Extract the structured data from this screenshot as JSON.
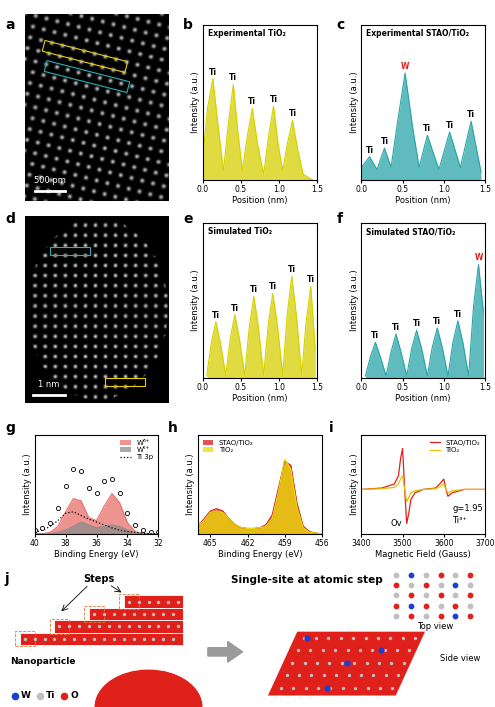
{
  "panel_a": {
    "letter": "a",
    "type": "image",
    "scale_bar": "500 pm"
  },
  "panel_d": {
    "letter": "d",
    "type": "image",
    "scale_bar": "1 nm"
  },
  "chart_data": [
    {
      "letter": "b",
      "type": "area",
      "title": "Experimental TiO₂",
      "x_label": "Position (nm)",
      "y_label": "Intensity (a.u.)",
      "x": [
        0.0,
        0.06,
        0.13,
        0.2,
        0.27,
        0.33,
        0.4,
        0.46,
        0.52,
        0.58,
        0.65,
        0.72,
        0.8,
        0.86,
        0.93,
        0.99,
        1.05,
        1.11,
        1.18,
        1.25,
        1.32,
        1.4,
        1.45
      ],
      "series": [
        {
          "color": "#d6d000",
          "values": [
            0.2,
            0.6,
            0.85,
            0.45,
            0.08,
            0.45,
            0.8,
            0.4,
            0.08,
            0.35,
            0.6,
            0.3,
            0.05,
            0.35,
            0.62,
            0.3,
            0.08,
            0.3,
            0.5,
            0.25,
            0.05,
            0.02,
            0.0
          ]
        }
      ],
      "peak_labels": [
        {
          "x": 0.13,
          "label": "Ti"
        },
        {
          "x": 0.4,
          "label": "Ti"
        },
        {
          "x": 0.65,
          "label": "Ti"
        },
        {
          "x": 0.93,
          "label": "Ti"
        },
        {
          "x": 1.18,
          "label": "Ti"
        }
      ],
      "xlim": [
        0.0,
        1.5
      ],
      "ylim": [
        0,
        1.3
      ],
      "xticks": [
        0.0,
        0.5,
        1.0,
        1.5
      ],
      "tick_labels": "x"
    },
    {
      "letter": "c",
      "type": "area",
      "title": "Experimental STAO/TiO₂",
      "x_label": "Position (nm)",
      "y_label": "Intensity (a.u.)",
      "x": [
        0.0,
        0.1,
        0.19,
        0.28,
        0.36,
        0.44,
        0.53,
        0.62,
        0.7,
        0.8,
        0.94,
        1.07,
        1.2,
        1.33,
        1.45
      ],
      "series": [
        {
          "color": "#2aa5a8",
          "values": [
            0.12,
            0.22,
            0.1,
            0.3,
            0.12,
            0.55,
            1.0,
            0.5,
            0.12,
            0.42,
            0.1,
            0.45,
            0.12,
            0.55,
            0.08
          ]
        }
      ],
      "peak_labels": [
        {
          "x": 0.1,
          "label": "Ti"
        },
        {
          "x": 0.28,
          "label": "Ti"
        },
        {
          "x": 0.53,
          "label": "W",
          "color": "#e0201b"
        },
        {
          "x": 0.8,
          "label": "Ti"
        },
        {
          "x": 1.07,
          "label": "Ti"
        },
        {
          "x": 1.33,
          "label": "Ti"
        }
      ],
      "xlim": [
        0.0,
        1.5
      ],
      "ylim": [
        0,
        1.45
      ],
      "xticks": [
        0.0,
        0.5,
        1.0,
        1.5
      ],
      "tick_labels": "x"
    },
    {
      "letter": "e",
      "type": "area",
      "title": "Simulated TiO₂",
      "x_label": "Position (nm)",
      "y_label": "Intensity (a.u.)",
      "x": [
        0.05,
        0.11,
        0.17,
        0.23,
        0.3,
        0.36,
        0.42,
        0.48,
        0.55,
        0.61,
        0.67,
        0.73,
        0.8,
        0.86,
        0.92,
        0.98,
        1.05,
        1.11,
        1.17,
        1.23,
        1.3,
        1.36,
        1.42,
        1.48
      ],
      "series": [
        {
          "color": "#d6d000",
          "values": [
            0.02,
            0.25,
            0.4,
            0.25,
            0.02,
            0.28,
            0.45,
            0.28,
            0.02,
            0.36,
            0.58,
            0.36,
            0.02,
            0.38,
            0.6,
            0.38,
            0.02,
            0.45,
            0.72,
            0.45,
            0.02,
            0.4,
            0.65,
            0.2
          ]
        }
      ],
      "peak_labels": [
        {
          "x": 0.17,
          "label": "Ti"
        },
        {
          "x": 0.42,
          "label": "Ti"
        },
        {
          "x": 0.67,
          "label": "Ti"
        },
        {
          "x": 0.92,
          "label": "Ti"
        },
        {
          "x": 1.17,
          "label": "Ti"
        },
        {
          "x": 1.42,
          "label": "Ti"
        }
      ],
      "xlim": [
        0.0,
        1.5
      ],
      "ylim": [
        0,
        1.1
      ],
      "xticks": [
        0.0,
        0.5,
        1.0,
        1.5
      ],
      "tick_labels": "x"
    },
    {
      "letter": "f",
      "type": "area",
      "title": "Simulated STAO/TiO₂",
      "x_label": "Position (nm)",
      "y_label": "Intensity (a.u.)",
      "x": [
        0.05,
        0.11,
        0.17,
        0.23,
        0.3,
        0.36,
        0.42,
        0.48,
        0.55,
        0.61,
        0.67,
        0.73,
        0.8,
        0.86,
        0.92,
        0.98,
        1.05,
        1.11,
        1.17,
        1.23,
        1.3,
        1.36,
        1.42,
        1.48
      ],
      "series": [
        {
          "color": "#2aa5a8",
          "values": [
            0.02,
            0.18,
            0.3,
            0.18,
            0.02,
            0.22,
            0.37,
            0.22,
            0.02,
            0.25,
            0.4,
            0.25,
            0.02,
            0.26,
            0.42,
            0.26,
            0.02,
            0.3,
            0.48,
            0.3,
            0.02,
            0.6,
            0.95,
            0.55
          ]
        }
      ],
      "peak_labels": [
        {
          "x": 0.17,
          "label": "Ti"
        },
        {
          "x": 0.42,
          "label": "Ti"
        },
        {
          "x": 0.67,
          "label": "Ti"
        },
        {
          "x": 0.92,
          "label": "Ti"
        },
        {
          "x": 1.17,
          "label": "Ti"
        },
        {
          "x": 1.42,
          "label": "W",
          "color": "#e0201b"
        }
      ],
      "xlim": [
        0.0,
        1.5
      ],
      "ylim": [
        0,
        1.3
      ],
      "xticks": [
        0.0,
        0.5,
        1.0,
        1.5
      ],
      "tick_labels": "x"
    },
    {
      "letter": "g",
      "type": "line",
      "x_label": "Binding Energy (eV)",
      "y_label": "Intensity (a.u.)",
      "x": [
        40,
        39.5,
        39,
        38.5,
        38,
        37.5,
        37,
        36.5,
        36,
        35.5,
        35,
        34.5,
        34,
        33.5,
        33,
        32.5,
        32
      ],
      "series": [
        {
          "type": "scatter",
          "marker": "circle",
          "color": "#000000",
          "values": [
            0.05,
            0.08,
            0.15,
            0.35,
            0.65,
            0.88,
            0.85,
            0.62,
            0.55,
            0.72,
            0.75,
            0.55,
            0.28,
            0.12,
            0.05,
            0.03,
            0.02
          ]
        },
        {
          "name": "W⁶⁺",
          "type": "area",
          "color": "#e8706c",
          "values": [
            0,
            0,
            0.02,
            0.1,
            0.3,
            0.48,
            0.45,
            0.22,
            0.18,
            0.38,
            0.55,
            0.42,
            0.15,
            0.03,
            0,
            0,
            0
          ]
        },
        {
          "name": "W⁵⁺",
          "type": "area",
          "color": "#8c8c8c",
          "values": [
            0,
            0,
            0,
            0.02,
            0.05,
            0.1,
            0.16,
            0.12,
            0.08,
            0.1,
            0.12,
            0.1,
            0.05,
            0.01,
            0,
            0,
            0
          ]
        },
        {
          "name": "Ti 3p",
          "type": "line",
          "line_style": "dotted",
          "color": "#000000",
          "values": [
            0.02,
            0.05,
            0.1,
            0.18,
            0.28,
            0.3,
            0.25,
            0.2,
            0.16,
            0.12,
            0.08,
            0.05,
            0.03,
            0.02,
            0.01,
            0,
            0
          ]
        }
      ],
      "legend": "upper right",
      "xlim": [
        40,
        32
      ],
      "ylim": [
        0,
        1.35
      ],
      "xticks": [
        40,
        38,
        36,
        34,
        32
      ],
      "tick_labels": "x"
    },
    {
      "letter": "h",
      "type": "area",
      "x_label": "Binding Energy (eV)",
      "y_label": "Intensity (a.u.)",
      "x": [
        466,
        465.5,
        465,
        464.5,
        464,
        463.5,
        463,
        462.5,
        462,
        461.5,
        461,
        460.5,
        460,
        459.5,
        459,
        458.5,
        458,
        457.5,
        457,
        456.5,
        456
      ],
      "series": [
        {
          "name": "STAO/TiO₂",
          "color": "#d7191c",
          "values": [
            0.1,
            0.2,
            0.3,
            0.33,
            0.3,
            0.2,
            0.12,
            0.08,
            0.07,
            0.07,
            0.08,
            0.12,
            0.25,
            0.6,
            0.95,
            0.9,
            0.4,
            0.1,
            0.03,
            0.01,
            0.0
          ]
        },
        {
          "name": "TiO₂",
          "color": "#e6e000",
          "values": [
            0.1,
            0.18,
            0.28,
            0.3,
            0.28,
            0.2,
            0.12,
            0.08,
            0.07,
            0.07,
            0.08,
            0.1,
            0.2,
            0.55,
            0.98,
            0.85,
            0.35,
            0.08,
            0.02,
            0.01,
            0.0
          ]
        }
      ],
      "legend": "upper left",
      "xlim": [
        466,
        456
      ],
      "ylim": [
        0,
        1.3
      ],
      "xticks": [
        465,
        462,
        459,
        456
      ],
      "tick_labels": "x"
    },
    {
      "letter": "i",
      "type": "line",
      "x_label": "Magnetic Field (Gauss)",
      "y_label": "Intensity (a.u.)",
      "x": [
        3400,
        3450,
        3480,
        3490,
        3495,
        3500,
        3505,
        3510,
        3515,
        3520,
        3530,
        3550,
        3580,
        3590,
        3600,
        3605,
        3610,
        3620,
        3650,
        3700
      ],
      "series": [
        {
          "name": "STAO/TiO₂",
          "color": "#e0201b",
          "values": [
            0,
            0.02,
            0.08,
            0.2,
            0.45,
            0.6,
            0.0,
            -0.5,
            -0.35,
            -0.15,
            -0.05,
            0,
            0.02,
            0.08,
            0.15,
            0.0,
            -0.1,
            -0.05,
            0,
            0
          ]
        },
        {
          "name": "TiO₂",
          "color": "#e6c200",
          "values": [
            0,
            0.01,
            0.03,
            0.08,
            0.15,
            0.2,
            0.0,
            -0.18,
            -0.12,
            -0.05,
            -0.02,
            0,
            0.01,
            0.04,
            0.08,
            0,
            -0.05,
            -0.02,
            0,
            0
          ]
        }
      ],
      "annotations": [
        {
          "text": "Ov",
          "x": 3470,
          "y": -0.5
        },
        {
          "text": "g=1.95",
          "x": 3620,
          "y": -0.28
        },
        {
          "text": "Ti³⁺",
          "x": 3620,
          "y": -0.45
        }
      ],
      "legend": "upper right",
      "xlim": [
        3400,
        3700
      ],
      "ylim": [
        -0.65,
        0.8
      ],
      "xticks": [
        3400,
        3500,
        3600,
        3700
      ],
      "tick_labels": "x"
    }
  ],
  "panel_j": {
    "letter": "j",
    "type": "diagram",
    "title": "Single-site at atomic step",
    "labels": {
      "steps": "Steps",
      "nanoparticle": "Nanoparticle",
      "top_view": "Top view",
      "side_view": "Side view"
    },
    "atoms": [
      {
        "label": "W",
        "color": "#1a3fd1"
      },
      {
        "label": "Ti",
        "color": "#bfbfbf"
      },
      {
        "label": "O",
        "color": "#e0201b"
      }
    ]
  }
}
